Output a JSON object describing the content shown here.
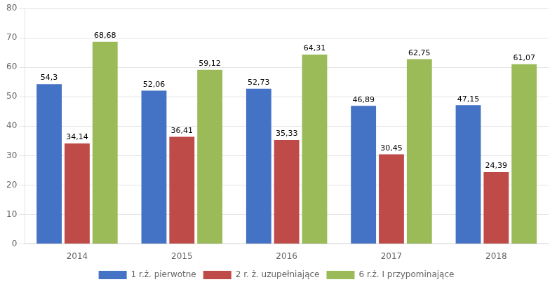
{
  "chart_data": {
    "type": "bar",
    "categories": [
      "2014",
      "2015",
      "2016",
      "2017",
      "2018"
    ],
    "series": [
      {
        "name": "1 r.ż. pierwotne",
        "color": "#4472C4",
        "values": [
          54.3,
          52.06,
          52.73,
          46.89,
          47.15
        ],
        "value_labels": [
          "54,3",
          "52,06",
          "52,73",
          "46,89",
          "47,15"
        ]
      },
      {
        "name": "2 r. ż. uzupełniające",
        "color": "#BE4B48",
        "values": [
          34.14,
          36.41,
          35.33,
          30.45,
          24.39
        ],
        "value_labels": [
          "34,14",
          "36,41",
          "35,33",
          "30,45",
          "24,39"
        ]
      },
      {
        "name": "6 r.ż. I przypominające",
        "color": "#9BBB59",
        "values": [
          68.68,
          59.12,
          64.31,
          62.75,
          61.07
        ],
        "value_labels": [
          "68,68",
          "59,12",
          "64,31",
          "62,75",
          "61,07"
        ]
      }
    ],
    "ylim": [
      0,
      80
    ],
    "yticks": [
      0,
      10,
      20,
      30,
      40,
      50,
      60,
      70,
      80
    ],
    "grid": true,
    "legend": "bottom",
    "data_labels": true
  }
}
